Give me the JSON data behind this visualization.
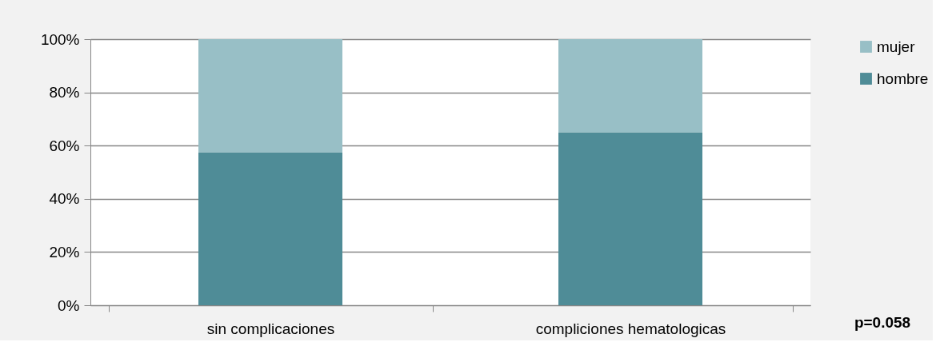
{
  "chart_data": {
    "type": "bar",
    "stacked": true,
    "categories": [
      "sin complicaciones",
      "compliciones hematologicas"
    ],
    "series": [
      {
        "name": "hombre",
        "color": "#4f8c97",
        "values": [
          57.5,
          65
        ]
      },
      {
        "name": "mujer",
        "color": "#98bfc6",
        "values": [
          42.5,
          35
        ]
      }
    ],
    "ylim": [
      0,
      100
    ],
    "yticks": [
      {
        "value": 0,
        "label": "0%"
      },
      {
        "value": 20,
        "label": "20%"
      },
      {
        "value": 40,
        "label": "40%"
      },
      {
        "value": 60,
        "label": "60%"
      },
      {
        "value": 80,
        "label": "80%"
      },
      {
        "value": 100,
        "label": "100%"
      }
    ],
    "grid": "y",
    "legend": "right",
    "annotations": [
      "p=0.058"
    ]
  }
}
